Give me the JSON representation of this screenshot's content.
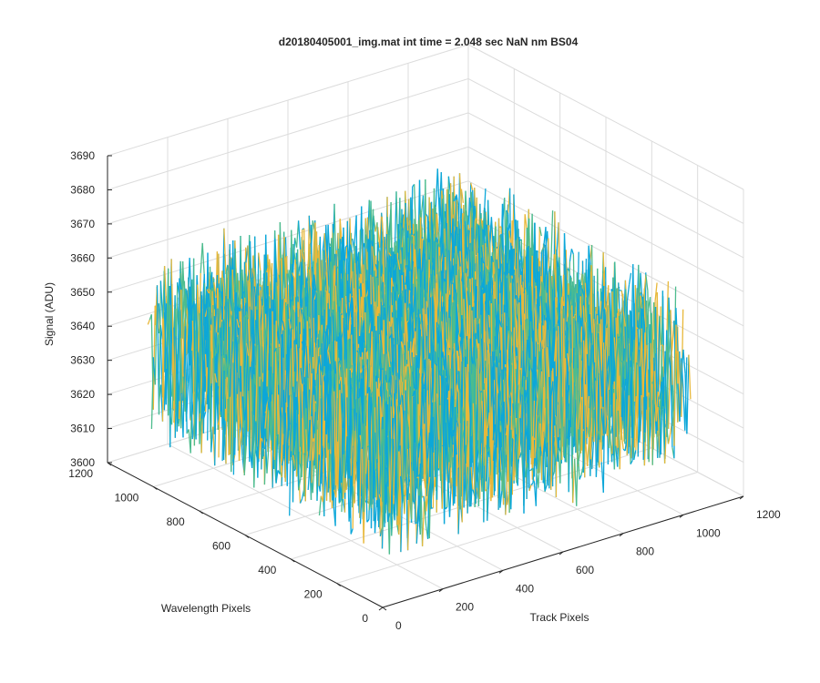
{
  "figure": {
    "title": "d20180405001_img.mat int time = 2.048 sec  NaN nm BS04"
  },
  "chart_data": {
    "type": "surface",
    "title": "d20180405001_img.mat int time = 2.048 sec  NaN nm BS04",
    "xlabel": "Track Pixels",
    "ylabel": "Wavelength Pixels",
    "zlabel": "Signal (ADU)",
    "xlim": [
      0,
      1200
    ],
    "ylim": [
      0,
      1200
    ],
    "zlim": [
      3600,
      3690
    ],
    "xticks": [
      "0",
      "200",
      "400",
      "600",
      "800",
      "1000",
      "1200"
    ],
    "yticks": [
      "0",
      "200",
      "400",
      "600",
      "800",
      "1000",
      "1200"
    ],
    "zticks": [
      "3600",
      "3610",
      "3620",
      "3630",
      "3640",
      "3650",
      "3660",
      "3670",
      "3680",
      "3690"
    ],
    "data_extent": {
      "x": [
        0,
        1024
      ],
      "y": [
        0,
        1024
      ]
    },
    "signal_mean": 3640,
    "signal_range": [
      3615,
      3675
    ],
    "grid": true,
    "view": "3d-azimuth-45",
    "colormap": "parula",
    "colors": {
      "low": "#0ca7d9",
      "mid": "#4dbc8e",
      "high": "#e8b83a"
    }
  }
}
